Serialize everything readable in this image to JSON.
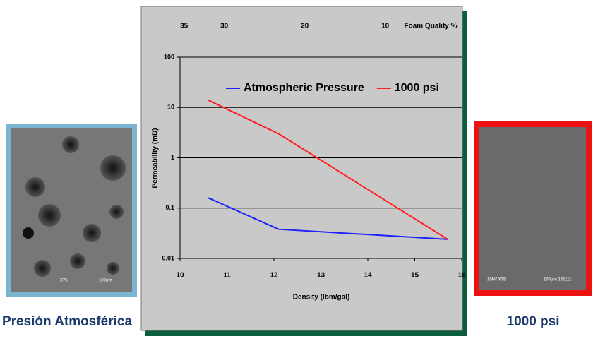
{
  "chart_data": {
    "type": "line",
    "x_label": "Density (lbm/gal)",
    "y_label": "Permeability (mD)",
    "xlim": [
      10,
      16
    ],
    "xticks": [
      10,
      11,
      12,
      13,
      14,
      15,
      16
    ],
    "ylim": [
      0.01,
      100
    ],
    "yticks": [
      100,
      10,
      1,
      0.1,
      0.01
    ],
    "y_scale": "log",
    "grid": true,
    "x2_label": "Foam Quality %",
    "x2lim": [
      35.5,
      0.5
    ],
    "x2ticks": [
      35,
      30,
      20,
      10
    ],
    "legend": "top",
    "series": [
      {
        "name": "Atmospheric Pressure",
        "color": "#1f1fff",
        "x": [
          10.6,
          12.1,
          15.7
        ],
        "values": [
          0.16,
          0.038,
          0.024
        ]
      },
      {
        "name": "1000 psi",
        "color": "#ff1f1f",
        "x": [
          10.6,
          12.1,
          15.7
        ],
        "values": [
          14,
          3,
          0.024
        ]
      }
    ]
  },
  "images": [
    {
      "caption": "Presión Atmosférica",
      "labels": [
        "X75",
        "100µm"
      ]
    },
    {
      "caption": "1000 psi",
      "labels": [
        "10kV X75",
        "100µm 141111"
      ]
    }
  ]
}
